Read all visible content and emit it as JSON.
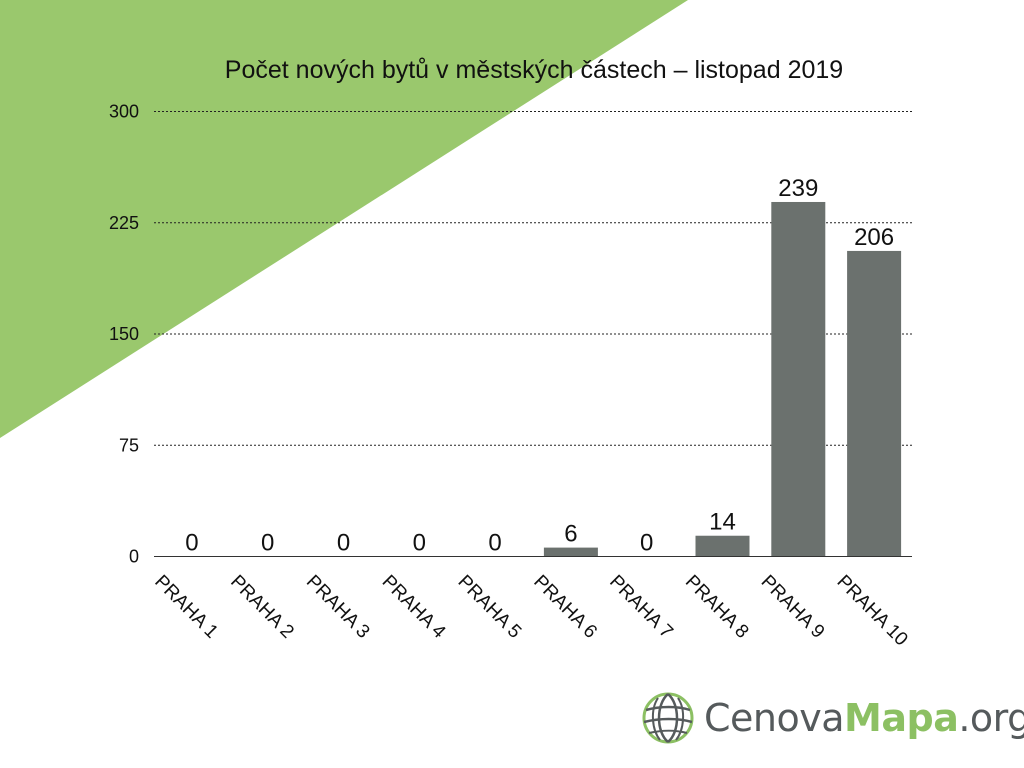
{
  "chart_data": {
    "type": "bar",
    "title": "Počet nových bytů v městských částech – listopad 2019",
    "categories": [
      "PRAHA 1",
      "PRAHA 2",
      "PRAHA 3",
      "PRAHA 4",
      "PRAHA 5",
      "PRAHA 6",
      "PRAHA 7",
      "PRAHA 8",
      "PRAHA 9",
      "PRAHA 10"
    ],
    "values": [
      0,
      0,
      0,
      0,
      0,
      6,
      0,
      14,
      239,
      206
    ],
    "data_labels": [
      "0",
      "0",
      "0",
      "0",
      "0",
      "6",
      "0",
      "14",
      "239",
      "206"
    ],
    "yticks": [
      "0",
      "75",
      "150",
      "225",
      "300"
    ],
    "ylim": [
      0,
      300
    ],
    "xlabel": "",
    "ylabel": "",
    "grid": true,
    "legend": "none",
    "bar_color": "#6b716e"
  },
  "background": {
    "accent_color": "#9ac86d"
  },
  "logo": {
    "part1": "Cenova",
    "part2": "Mapa",
    "part3": ".org",
    "icon": "globe-icon"
  }
}
